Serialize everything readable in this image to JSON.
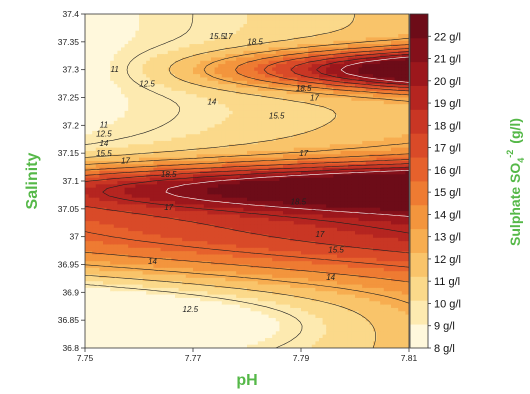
{
  "chart_data": {
    "type": "heatmap",
    "subtype": "filled-contour",
    "xlabel": "pH",
    "ylabel": "Salinity",
    "colorbar_label": "Sulphate SO",
    "colorbar_label_sub": "4",
    "colorbar_label_sup": "-2",
    "colorbar_label_unit": "(g/l)",
    "x_ticks": [
      "7.75",
      "7.77",
      "7.79",
      "7.81"
    ],
    "x_tick_values": [
      7.75,
      7.77,
      7.79,
      7.81
    ],
    "y_ticks": [
      "36.8",
      "36.85",
      "36.9",
      "36.95",
      "37",
      "37.05",
      "37.1",
      "37.15",
      "37.2",
      "37.25",
      "37.3",
      "37.35",
      "37.4"
    ],
    "y_tick_values": [
      36.8,
      36.85,
      36.9,
      36.95,
      37.0,
      37.05,
      37.1,
      37.15,
      37.2,
      37.25,
      37.3,
      37.35,
      37.4
    ],
    "xlim": [
      7.75,
      7.81
    ],
    "ylim": [
      36.8,
      37.4
    ],
    "colorbar": {
      "unit": "g/l",
      "levels": [
        8,
        9,
        10,
        11,
        12,
        13,
        14,
        15,
        16,
        17,
        18,
        19,
        20,
        21,
        22
      ],
      "labels": [
        "8  g/l",
        "9  g/l",
        "10  g/l",
        "11  g/l",
        "12  g/l",
        "13  g/l",
        "14  g/l",
        "15  g/l",
        "16  g/l",
        "17  g/l",
        "18  g/l",
        "19  g/l",
        "20  g/l",
        "21  g/l",
        "22  g/l"
      ],
      "range": [
        8,
        23
      ],
      "colors": [
        "#fff8dc",
        "#fdeab0",
        "#fbd98a",
        "#f9c46a",
        "#f7ad50",
        "#f3953d",
        "#ee7b32",
        "#e6612c",
        "#d94a28",
        "#c93624",
        "#b52520",
        "#9c171c",
        "#84101a",
        "#6d0c18"
      ]
    },
    "contour_labels": [
      {
        "text": "15.5",
        "x": 7.7745,
        "y": 37.355
      },
      {
        "text": "17",
        "x": 7.7765,
        "y": 37.355
      },
      {
        "text": "18.5",
        "x": 7.7815,
        "y": 37.345
      },
      {
        "text": "11",
        "x": 7.7555,
        "y": 37.296
      },
      {
        "text": "12.5",
        "x": 7.7615,
        "y": 37.27
      },
      {
        "text": "18.5",
        "x": 7.7905,
        "y": 37.262
      },
      {
        "text": "17",
        "x": 7.7925,
        "y": 37.245
      },
      {
        "text": "14",
        "x": 7.7735,
        "y": 37.237
      },
      {
        "text": "15.5",
        "x": 7.7855,
        "y": 37.212
      },
      {
        "text": "11",
        "x": 7.7535,
        "y": 37.196
      },
      {
        "text": "12.5",
        "x": 7.7535,
        "y": 37.18
      },
      {
        "text": "14",
        "x": 7.7535,
        "y": 37.163
      },
      {
        "text": "15.5",
        "x": 7.7535,
        "y": 37.145
      },
      {
        "text": "17",
        "x": 7.7575,
        "y": 37.131
      },
      {
        "text": "18.5",
        "x": 7.7655,
        "y": 37.107
      },
      {
        "text": "17",
        "x": 7.7905,
        "y": 37.145
      },
      {
        "text": "18.5",
        "x": 7.7895,
        "y": 37.058
      },
      {
        "text": "17",
        "x": 7.7655,
        "y": 37.048
      },
      {
        "text": "17",
        "x": 7.7935,
        "y": 36.999
      },
      {
        "text": "15.5",
        "x": 7.7965,
        "y": 36.972
      },
      {
        "text": "14",
        "x": 7.7625,
        "y": 36.951
      },
      {
        "text": "14",
        "x": 7.7955,
        "y": 36.922
      },
      {
        "text": "12.5",
        "x": 7.7695,
        "y": 36.865
      }
    ]
  }
}
